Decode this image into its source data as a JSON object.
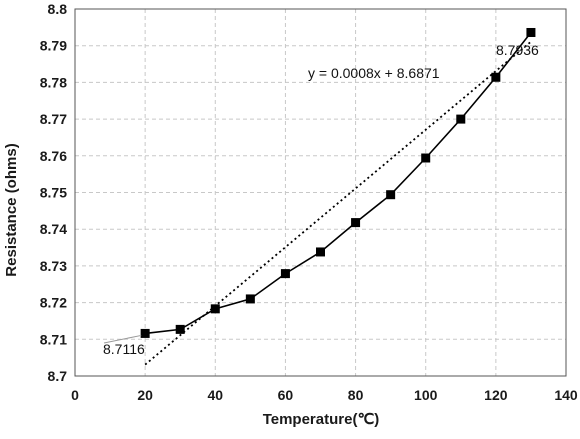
{
  "chart_data": {
    "type": "scatter",
    "xlabel": "Temperature(℃)",
    "ylabel": "Resistance (ohms)",
    "xlim": [
      0,
      140
    ],
    "ylim": [
      8.7,
      8.8
    ],
    "x_ticks": [
      "0",
      "20",
      "40",
      "60",
      "80",
      "100",
      "120",
      "140"
    ],
    "y_ticks": [
      "8.7",
      "8.71",
      "8.72",
      "8.73",
      "8.74",
      "8.75",
      "8.76",
      "8.77",
      "8.78",
      "8.79",
      "8.8"
    ],
    "grid": true,
    "legend": false,
    "series": [
      {
        "x": [
          20,
          30,
          40,
          50,
          60,
          70,
          80,
          90,
          100,
          110,
          120,
          130
        ],
        "y": [
          8.7116,
          8.7127,
          8.7183,
          8.721,
          8.7279,
          8.7338,
          8.7418,
          8.7494,
          8.7594,
          8.77,
          8.7814,
          8.7936
        ],
        "marker": "square",
        "line": "solid",
        "color": "#000000"
      }
    ],
    "trendline": {
      "equation": "y = 0.0008x + 8.6871",
      "slope": 0.0008,
      "intercept": 8.6871,
      "x_range": [
        20,
        130
      ],
      "style": "dotted"
    },
    "annotations": {
      "first_point_label": "8.7116",
      "last_point_label": "8.7936"
    }
  }
}
